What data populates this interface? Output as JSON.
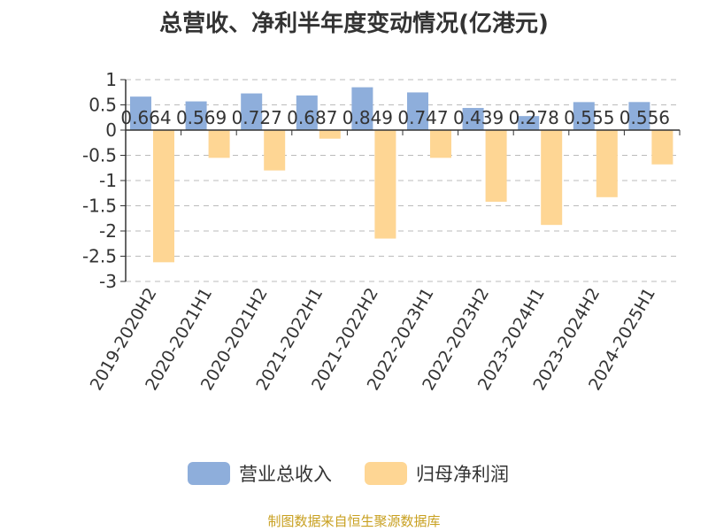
{
  "colors": {
    "revenue": "#8eaedb",
    "profit": "#fed694",
    "axis": "#333333",
    "grid": "#bbbbbb",
    "source": "#c8a020"
  },
  "source_text": "制图数据来自恒生聚源数据库",
  "chart_data": {
    "type": "bar",
    "title": "总营收、净利半年度变动情况(亿港元)",
    "xlabel": "",
    "ylabel": "",
    "ylim": [
      -3,
      1
    ],
    "yticks": [
      1,
      0.5,
      0,
      -0.5,
      -1,
      -1.5,
      -2,
      -2.5,
      -3
    ],
    "ytick_labels": [
      "1",
      "0.5",
      "0",
      "-0.5",
      "-1",
      "-1.5",
      "-2",
      "-2.5",
      "-3"
    ],
    "grid": true,
    "legend_position": "bottom",
    "categories": [
      "2019-2020H2",
      "2020-2021H1",
      "2020-2021H2",
      "2021-2022H1",
      "2021-2022H2",
      "2022-2023H1",
      "2022-2023H2",
      "2023-2024H1",
      "2023-2024H2",
      "2024-2025H1"
    ],
    "series": [
      {
        "name": "营业总收入",
        "values": [
          0.664,
          0.569,
          0.727,
          0.687,
          0.849,
          0.747,
          0.439,
          0.278,
          0.555,
          0.556
        ],
        "labels": [
          "0.664",
          "0.569",
          "0.727",
          "0.687",
          "0.849",
          "0.747",
          "0.439",
          "0.278",
          "0.555",
          "0.556"
        ]
      },
      {
        "name": "归母净利润",
        "values": [
          -2.62,
          -0.55,
          -0.8,
          -0.17,
          -2.15,
          -0.55,
          -1.42,
          -1.88,
          -1.33,
          -0.68
        ]
      }
    ]
  }
}
